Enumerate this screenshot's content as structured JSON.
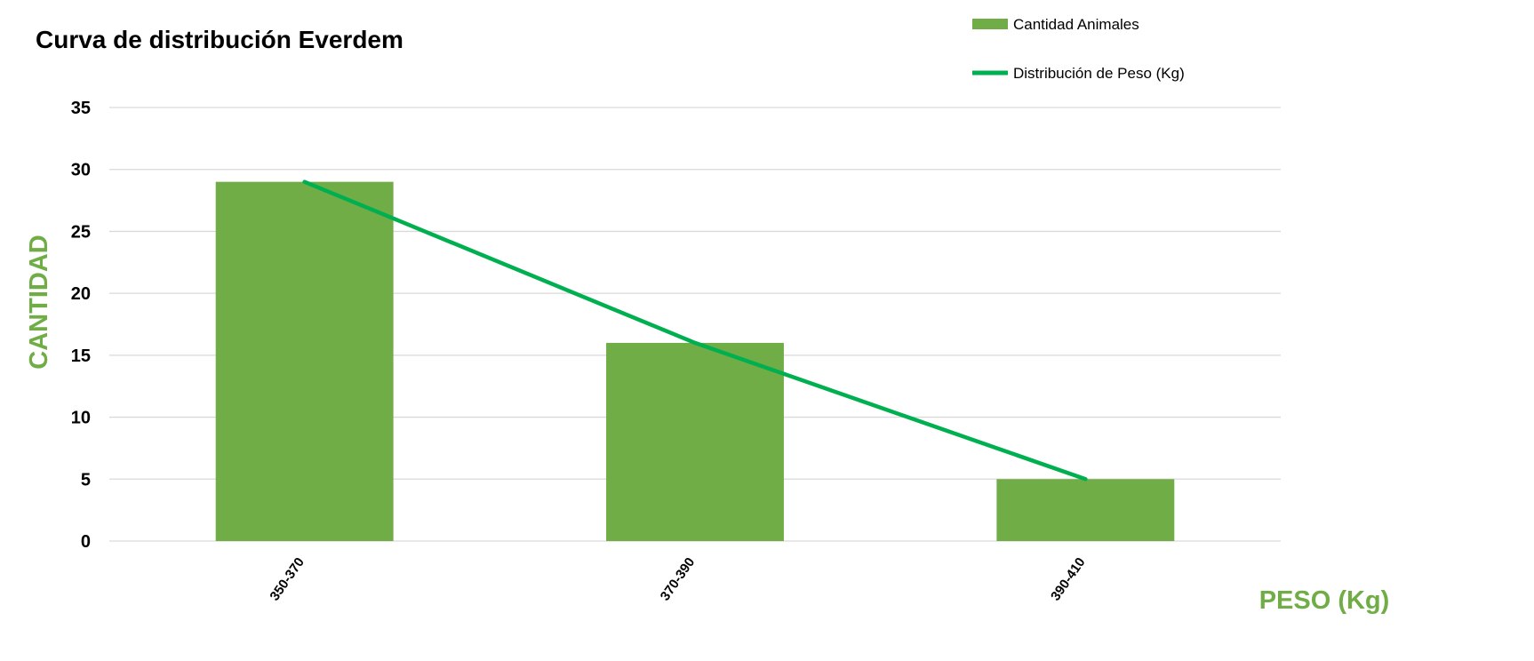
{
  "chart_data": {
    "type": "bar",
    "title": "Curva de distribución Everdem",
    "xlabel": "PESO (Kg)",
    "ylabel": "CANTIDAD",
    "categories": [
      "350-370",
      "370-390",
      "390-410"
    ],
    "series": [
      {
        "name": "Cantidad Animales",
        "type": "bar",
        "values": [
          29,
          16,
          5
        ],
        "color": "#70AD47"
      },
      {
        "name": "Distribución de Peso (Kg)",
        "type": "line",
        "values": [
          29,
          16,
          5
        ],
        "color": "#00B050"
      }
    ],
    "ylim": [
      0,
      35
    ],
    "yticks": [
      0,
      5,
      10,
      15,
      20,
      25,
      30,
      35
    ],
    "grid": true,
    "gridColor": "#D9D9D9",
    "legend_position": "top-right",
    "axisLabelColor": "#70AD47"
  }
}
